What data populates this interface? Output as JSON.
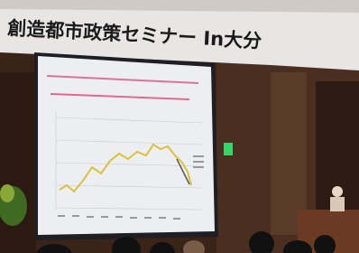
{
  "banner": {
    "text": "創造都市政策セミナー In大分"
  }
}
